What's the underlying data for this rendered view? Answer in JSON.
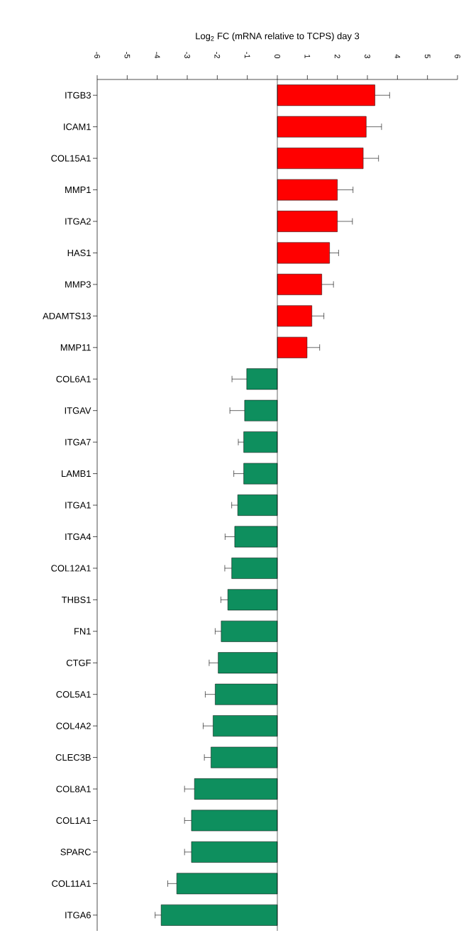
{
  "chart_data": {
    "type": "bar",
    "orientation": "horizontal",
    "xlabel": "Log$_{2}$ FC (mRNA relative to TCPS) day 3",
    "categories": [
      "ITGB3",
      "ICAM1",
      "COL15A1",
      "MMP1",
      "ITGA2",
      "HAS1",
      "MMP3",
      "ADAMTS13",
      "MMP11",
      "COL6A1",
      "ITGAV",
      "ITGA7",
      "LAMB1",
      "ITGA1",
      "ITGA4",
      "COL12A1",
      "THBS1",
      "FN1",
      "CTGF",
      "COL5A1",
      "COL4A2",
      "CLEC3B",
      "COL8A1",
      "COL1A1",
      "SPARC",
      "COL11A1",
      "ITGA6"
    ],
    "values": [
      3.25,
      2.96,
      2.86,
      2.0,
      2.0,
      1.74,
      1.48,
      1.15,
      0.99,
      -1.02,
      -1.09,
      -1.12,
      -1.12,
      -1.32,
      -1.42,
      -1.52,
      -1.65,
      -1.87,
      -1.97,
      -2.07,
      -2.14,
      -2.21,
      -2.76,
      -2.86,
      -2.86,
      -3.35,
      -3.87
    ],
    "errors": [
      [
        3.25,
        3.74
      ],
      [
        2.96,
        3.47
      ],
      [
        2.86,
        3.37
      ],
      [
        2.0,
        2.52
      ],
      [
        2.0,
        2.5
      ],
      [
        1.74,
        2.04
      ],
      [
        1.48,
        1.87
      ],
      [
        1.15,
        1.55
      ],
      [
        0.99,
        1.41
      ],
      [
        -1.51,
        -1.02
      ],
      [
        -1.58,
        -1.09
      ],
      [
        -1.3,
        -1.12
      ],
      [
        -1.45,
        -1.12
      ],
      [
        -1.52,
        -1.32
      ],
      [
        -1.74,
        -1.42
      ],
      [
        -1.75,
        -1.52
      ],
      [
        -1.88,
        -1.65
      ],
      [
        -2.07,
        -1.87
      ],
      [
        -2.27,
        -1.97
      ],
      [
        -2.4,
        -2.07
      ],
      [
        -2.47,
        -2.14
      ],
      [
        -2.43,
        -2.21
      ],
      [
        -3.09,
        -2.76
      ],
      [
        -3.09,
        -2.86
      ],
      [
        -3.09,
        -2.86
      ],
      [
        -3.65,
        -3.35
      ],
      [
        -4.07,
        -3.87
      ]
    ],
    "colors": [
      "#ff0000",
      "#ff0000",
      "#ff0000",
      "#ff0000",
      "#ff0000",
      "#ff0000",
      "#ff0000",
      "#ff0000",
      "#ff0000",
      "#0e8f5e",
      "#0e8f5e",
      "#0e8f5e",
      "#0e8f5e",
      "#0e8f5e",
      "#0e8f5e",
      "#0e8f5e",
      "#0e8f5e",
      "#0e8f5e",
      "#0e8f5e",
      "#0e8f5e",
      "#0e8f5e",
      "#0e8f5e",
      "#0e8f5e",
      "#0e8f5e",
      "#0e8f5e",
      "#0e8f5e",
      "#0e8f5e"
    ],
    "xlim": [
      -6,
      6
    ],
    "xticks": [
      -6,
      -5,
      -4,
      -3,
      -2,
      -1,
      0,
      1,
      2,
      3,
      4,
      5,
      6
    ],
    "ref_lines": [
      {
        "axis": "x",
        "value": 0
      }
    ]
  }
}
